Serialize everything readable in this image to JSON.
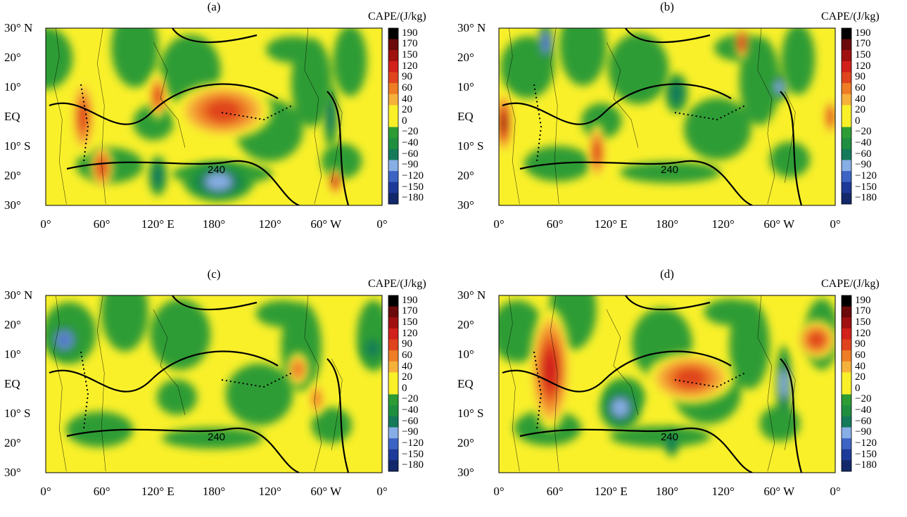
{
  "colorbar": {
    "title": "CAPE/(J/kg)",
    "levels": [
      "190",
      "170",
      "150",
      "120",
      "90",
      "60",
      "40",
      "20",
      "0",
      "−20",
      "−40",
      "−60",
      "−90",
      "−120",
      "−150",
      "−180"
    ],
    "colors": [
      "#000000",
      "#6b0a0a",
      "#a11010",
      "#d2201b",
      "#e0441e",
      "#ee7d25",
      "#f6b13b",
      "#f9f02a",
      "#f9f02a",
      "#2d9c34",
      "#1f8f3f",
      "#157a5a",
      "#88aee6",
      "#3c64c4",
      "#1e3a98",
      "#12286a"
    ]
  },
  "axes": {
    "y_ticks": [
      "30° N",
      "20°",
      "10°",
      "EQ",
      "10° S",
      "20°",
      "30°"
    ],
    "x_ticks": [
      "0°",
      "60°",
      "120° E",
      "180°",
      "120°",
      "60° W",
      "0°"
    ]
  },
  "contour_label": "240",
  "panels": [
    {
      "title": "(a)"
    },
    {
      "title": "(b)"
    },
    {
      "title": "(c)"
    },
    {
      "title": "(d)"
    }
  ],
  "chart_data": {
    "type": "heatmap",
    "variable": "CAPE",
    "unit": "J/kg",
    "xlim": [
      0,
      360
    ],
    "ylim": [
      -30,
      30
    ],
    "color_levels": [
      -180,
      -150,
      -120,
      -90,
      -60,
      -40,
      -20,
      0,
      20,
      40,
      60,
      90,
      120,
      150,
      170,
      190
    ],
    "contour_levels": [
      240
    ],
    "panel_titles": [
      "(a)",
      "(b)",
      "(c)",
      "(d)"
    ],
    "panels": [
      {
        "title": "(a)",
        "features": [
          {
            "lon": 190,
            "lat": 2,
            "w": 100,
            "h": 18,
            "val": 90
          },
          {
            "lon": 40,
            "lat": 0,
            "w": 20,
            "h": 25,
            "val": 90
          },
          {
            "lon": 60,
            "lat": -17,
            "w": 20,
            "h": 14,
            "val": 90
          },
          {
            "lon": 120,
            "lat": 7,
            "w": 15,
            "h": 14,
            "val": 90
          },
          {
            "lon": 185,
            "lat": -22,
            "w": 70,
            "h": 12,
            "val": -90
          },
          {
            "lon": 120,
            "lat": -20,
            "w": 15,
            "h": 12,
            "val": -60
          },
          {
            "lon": 305,
            "lat": 0,
            "w": 10,
            "h": 20,
            "val": -60
          },
          {
            "lon": 310,
            "lat": -22,
            "w": 10,
            "h": 8,
            "val": 120
          }
        ]
      },
      {
        "title": "(b)",
        "features": [
          {
            "lon": 5,
            "lat": -2,
            "w": 14,
            "h": 20,
            "val": 150
          },
          {
            "lon": 105,
            "lat": -12,
            "w": 15,
            "h": 18,
            "val": 90
          },
          {
            "lon": 355,
            "lat": 0,
            "w": 10,
            "h": 12,
            "val": 90
          },
          {
            "lon": 260,
            "lat": 25,
            "w": 10,
            "h": 10,
            "val": 120
          },
          {
            "lon": 50,
            "lat": 25,
            "w": 12,
            "h": 12,
            "val": -120
          },
          {
            "lon": 190,
            "lat": 8,
            "w": 20,
            "h": 12,
            "val": -60
          },
          {
            "lon": 300,
            "lat": 10,
            "w": 14,
            "h": 8,
            "val": -90
          }
        ]
      },
      {
        "title": "(c)",
        "features": [
          {
            "lon": 20,
            "lat": 15,
            "w": 30,
            "h": 10,
            "val": -120
          },
          {
            "lon": 270,
            "lat": 5,
            "w": 20,
            "h": 10,
            "val": 60
          },
          {
            "lon": 290,
            "lat": -5,
            "w": 12,
            "h": 10,
            "val": 60
          },
          {
            "lon": 350,
            "lat": 12,
            "w": 20,
            "h": 8,
            "val": -60
          }
        ]
      },
      {
        "title": "(d)",
        "features": [
          {
            "lon": 55,
            "lat": 5,
            "w": 40,
            "h": 40,
            "val": 120
          },
          {
            "lon": 205,
            "lat": 2,
            "w": 90,
            "h": 16,
            "val": 90
          },
          {
            "lon": 340,
            "lat": 15,
            "w": 40,
            "h": 12,
            "val": 90
          },
          {
            "lon": 130,
            "lat": -8,
            "w": 40,
            "h": 14,
            "val": -90
          },
          {
            "lon": 305,
            "lat": 0,
            "w": 12,
            "h": 25,
            "val": -90
          },
          {
            "lon": 185,
            "lat": -20,
            "w": 10,
            "h": 8,
            "val": -60
          }
        ]
      }
    ]
  }
}
